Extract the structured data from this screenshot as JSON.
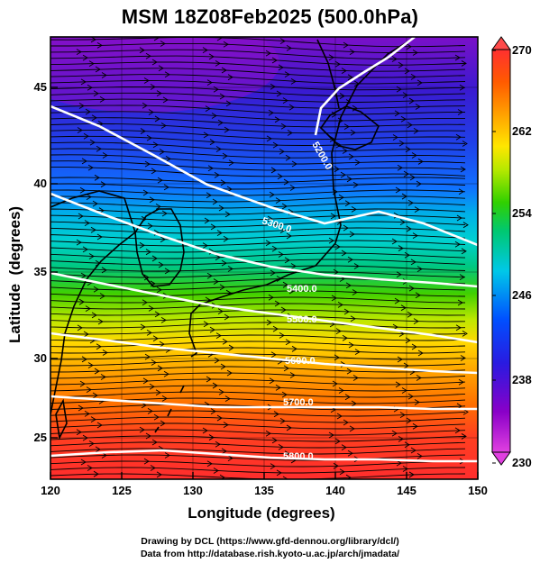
{
  "title": "MSM 18Z08Feb2025 (500.0hPa)",
  "axes": {
    "xlabel": "Longitude (degrees)",
    "ylabel": "Latitude  (degrees)",
    "x_ticks": [
      "120",
      "125",
      "130",
      "135",
      "140",
      "145",
      "150"
    ],
    "y_ticks": [
      "25",
      "30",
      "35",
      "40",
      "45"
    ]
  },
  "colorbar": {
    "ticks": [
      "270",
      "262",
      "254",
      "246",
      "238",
      "230"
    ],
    "colors": [
      "#ff5a5a",
      "#ff3d3d",
      "#ff2a2a",
      "#ff6a00",
      "#ff9a00",
      "#ffc800",
      "#ffe600",
      "#d4f000",
      "#8ee600",
      "#3ed400",
      "#00c850",
      "#00d2a0",
      "#00d8d8",
      "#00a8ff",
      "#0060ff",
      "#1a28e6",
      "#3c10c8",
      "#7a00c8",
      "#b400c8",
      "#e040e0"
    ]
  },
  "contour_labels": [
    "5200.0",
    "5300.0",
    "5400.0",
    "5500.0",
    "5600.0",
    "5700.0",
    "5800.0"
  ],
  "credits": {
    "line1": "Drawing by DCL (https://www.gfd-dennou.org/library/dcl/)",
    "line2": "Data from http://database.rish.kyoto-u.ac.jp/arch/jmadata/"
  }
}
